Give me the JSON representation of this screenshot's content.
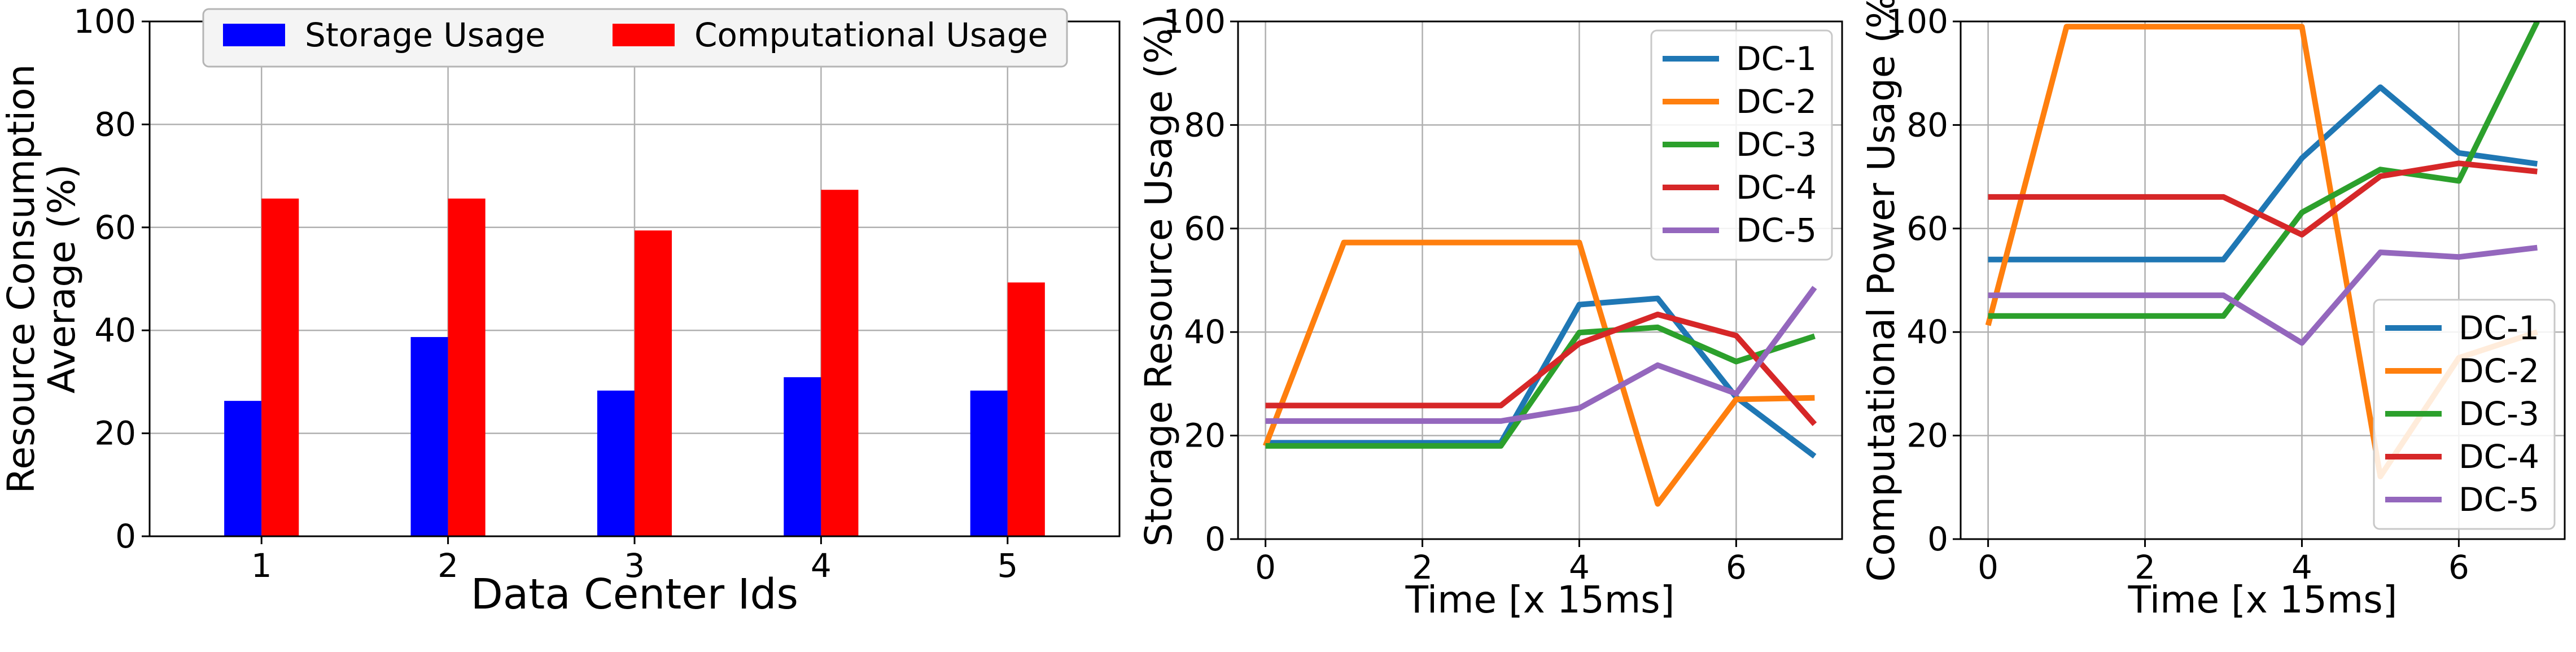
{
  "chart_data": [
    {
      "type": "bar",
      "title": "",
      "xlabel": "Data Center Ids",
      "ylabel_lines": [
        "Resource Consumption",
        "Average (%)"
      ],
      "categories": [
        "1",
        "2",
        "3",
        "4",
        "5"
      ],
      "ylim": [
        0,
        100
      ],
      "yticks": [
        0,
        20,
        40,
        60,
        80,
        100
      ],
      "grid": true,
      "legend_placement": "top-center",
      "series": [
        {
          "name": "Storage Usage",
          "color": "#0000ff",
          "values": [
            26.3,
            38.7,
            28.3,
            30.9,
            28.3
          ]
        },
        {
          "name": "Computational Usage",
          "color": "#ff0000",
          "values": [
            65.6,
            65.6,
            59.4,
            67.3,
            49.3
          ]
        }
      ]
    },
    {
      "type": "line",
      "title": "",
      "xlabel": "Time [x 15ms]",
      "ylabel": "Storage Resource Usage (%)",
      "xlim": [
        -0.35,
        7.35
      ],
      "xticks": [
        0,
        2,
        4,
        6
      ],
      "ylim": [
        0,
        100
      ],
      "yticks": [
        0,
        20,
        40,
        60,
        80,
        100
      ],
      "grid": true,
      "legend_placement": "top-right",
      "x": [
        0,
        1,
        2,
        3,
        4,
        5,
        6,
        7
      ],
      "series": [
        {
          "name": "DC-1",
          "color": "#1f77b4",
          "values": [
            18.6,
            18.6,
            18.6,
            18.6,
            45.3,
            46.5,
            27.4,
            16.0
          ]
        },
        {
          "name": "DC-2",
          "color": "#ff7f0e",
          "values": [
            18.0,
            57.3,
            57.3,
            57.3,
            57.3,
            6.8,
            27.0,
            27.3
          ]
        },
        {
          "name": "DC-3",
          "color": "#2ca02c",
          "values": [
            18.0,
            18.0,
            18.0,
            18.0,
            39.9,
            40.9,
            34.3,
            39.2
          ]
        },
        {
          "name": "DC-4",
          "color": "#d62728",
          "values": [
            25.8,
            25.8,
            25.8,
            25.8,
            37.8,
            43.4,
            39.3,
            22.2
          ]
        },
        {
          "name": "DC-5",
          "color": "#9467bd",
          "values": [
            22.8,
            22.8,
            22.8,
            22.8,
            25.3,
            33.6,
            28.1,
            48.6
          ]
        }
      ]
    },
    {
      "type": "line",
      "title": "",
      "xlabel": "Time [x 15ms]",
      "ylabel": "Computational Power Usage (%)",
      "xlim": [
        -0.35,
        7.35
      ],
      "xticks": [
        0,
        2,
        4,
        6
      ],
      "ylim": [
        0,
        100
      ],
      "yticks": [
        0,
        20,
        40,
        60,
        80,
        100
      ],
      "grid": true,
      "legend_placement": "bottom-right",
      "x": [
        0,
        1,
        2,
        3,
        4,
        5,
        6,
        7
      ],
      "series": [
        {
          "name": "DC-1",
          "color": "#1f77b4",
          "values": [
            54.0,
            54.0,
            54.0,
            54.0,
            73.6,
            87.3,
            74.6,
            72.5
          ]
        },
        {
          "name": "DC-2",
          "color": "#ff7f0e",
          "values": [
            41.3,
            99.0,
            99.0,
            99.0,
            99.0,
            12.1,
            35.0,
            40.0
          ]
        },
        {
          "name": "DC-3",
          "color": "#2ca02c",
          "values": [
            43.1,
            43.1,
            43.1,
            43.1,
            63.1,
            71.4,
            69.2,
            100.0
          ]
        },
        {
          "name": "DC-4",
          "color": "#d62728",
          "values": [
            66.1,
            66.1,
            66.1,
            66.1,
            58.8,
            70.1,
            72.6,
            71.0
          ]
        },
        {
          "name": "DC-5",
          "color": "#9467bd",
          "values": [
            47.1,
            47.1,
            47.1,
            47.1,
            37.9,
            55.4,
            54.5,
            56.3
          ]
        }
      ]
    }
  ]
}
